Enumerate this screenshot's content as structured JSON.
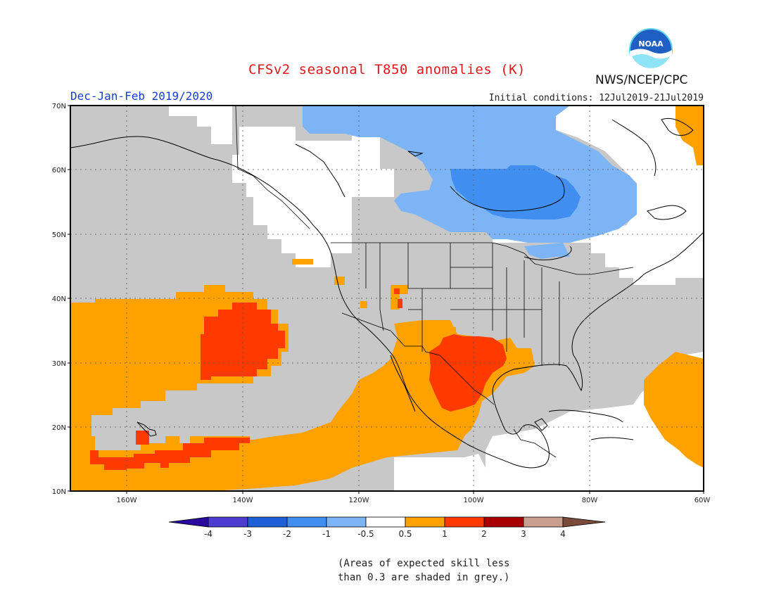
{
  "title": "CFSv2 seasonal T850 anomalies (K)",
  "period": "Dec-Jan-Feb 2019/2020",
  "initial_conditions": "Initial conditions: 12Jul2019-21Jul2019",
  "agency": "NWS/NCEP/CPC",
  "logo_text": "NOAA",
  "note_line1": "(Areas of expected skill less",
  "note_line2": "than 0.3 are shaded in grey.)",
  "axes": {
    "lat_labels": [
      "70N",
      "60N",
      "50N",
      "40N",
      "30N",
      "20N",
      "10N"
    ],
    "lon_labels": [
      "160W",
      "140W",
      "120W",
      "100W",
      "80W",
      "60W"
    ]
  },
  "colorbar": {
    "labels": [
      "-4",
      "-3",
      "-2",
      "-1",
      "-0.5",
      "0.5",
      "1",
      "2",
      "3",
      "4"
    ],
    "colors": [
      "#2a0a9e",
      "#4a3dcf",
      "#1c5fd6",
      "#3f8ef0",
      "#7db4f5",
      "#ffffff",
      "#ffa200",
      "#ff3a00",
      "#a80000",
      "#c9a08f",
      "#7a4a3a"
    ]
  },
  "map_colors": {
    "grey": "#c8c8c8",
    "orange": "#ffa200",
    "red": "#ff3a00",
    "light_blue": "#7db4f5",
    "blue": "#3f8ef0",
    "outline": "#000000"
  }
}
